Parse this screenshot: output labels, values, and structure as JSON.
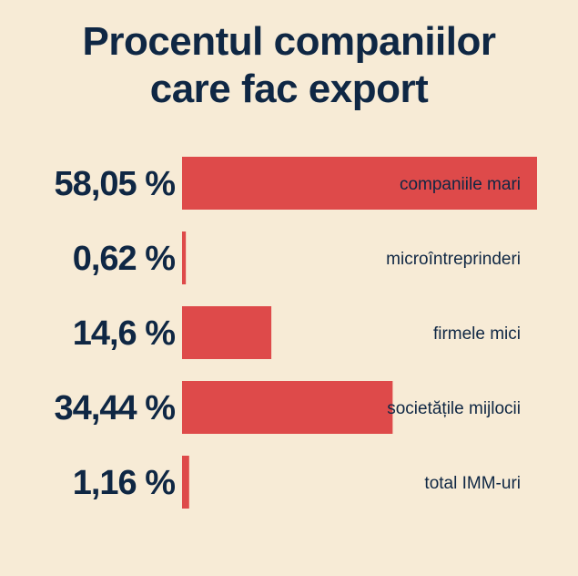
{
  "chart_data": {
    "type": "bar",
    "orientation": "horizontal",
    "title_lines": [
      "Procentul companiilor",
      "care fac export"
    ],
    "categories": [
      "companiile mari",
      "microîntreprinderi",
      "firmele mici",
      "societățile mijlocii",
      "total IMM-uri"
    ],
    "values": [
      58.05,
      0.62,
      14.6,
      34.44,
      1.16
    ],
    "value_labels": [
      "58,05 %",
      "0,62 %",
      "14,6 %",
      "34,44 %",
      "1,16 %"
    ],
    "bar_color": "#de4a4a",
    "text_color": "#0f2744",
    "background": "#f7ebd6"
  }
}
